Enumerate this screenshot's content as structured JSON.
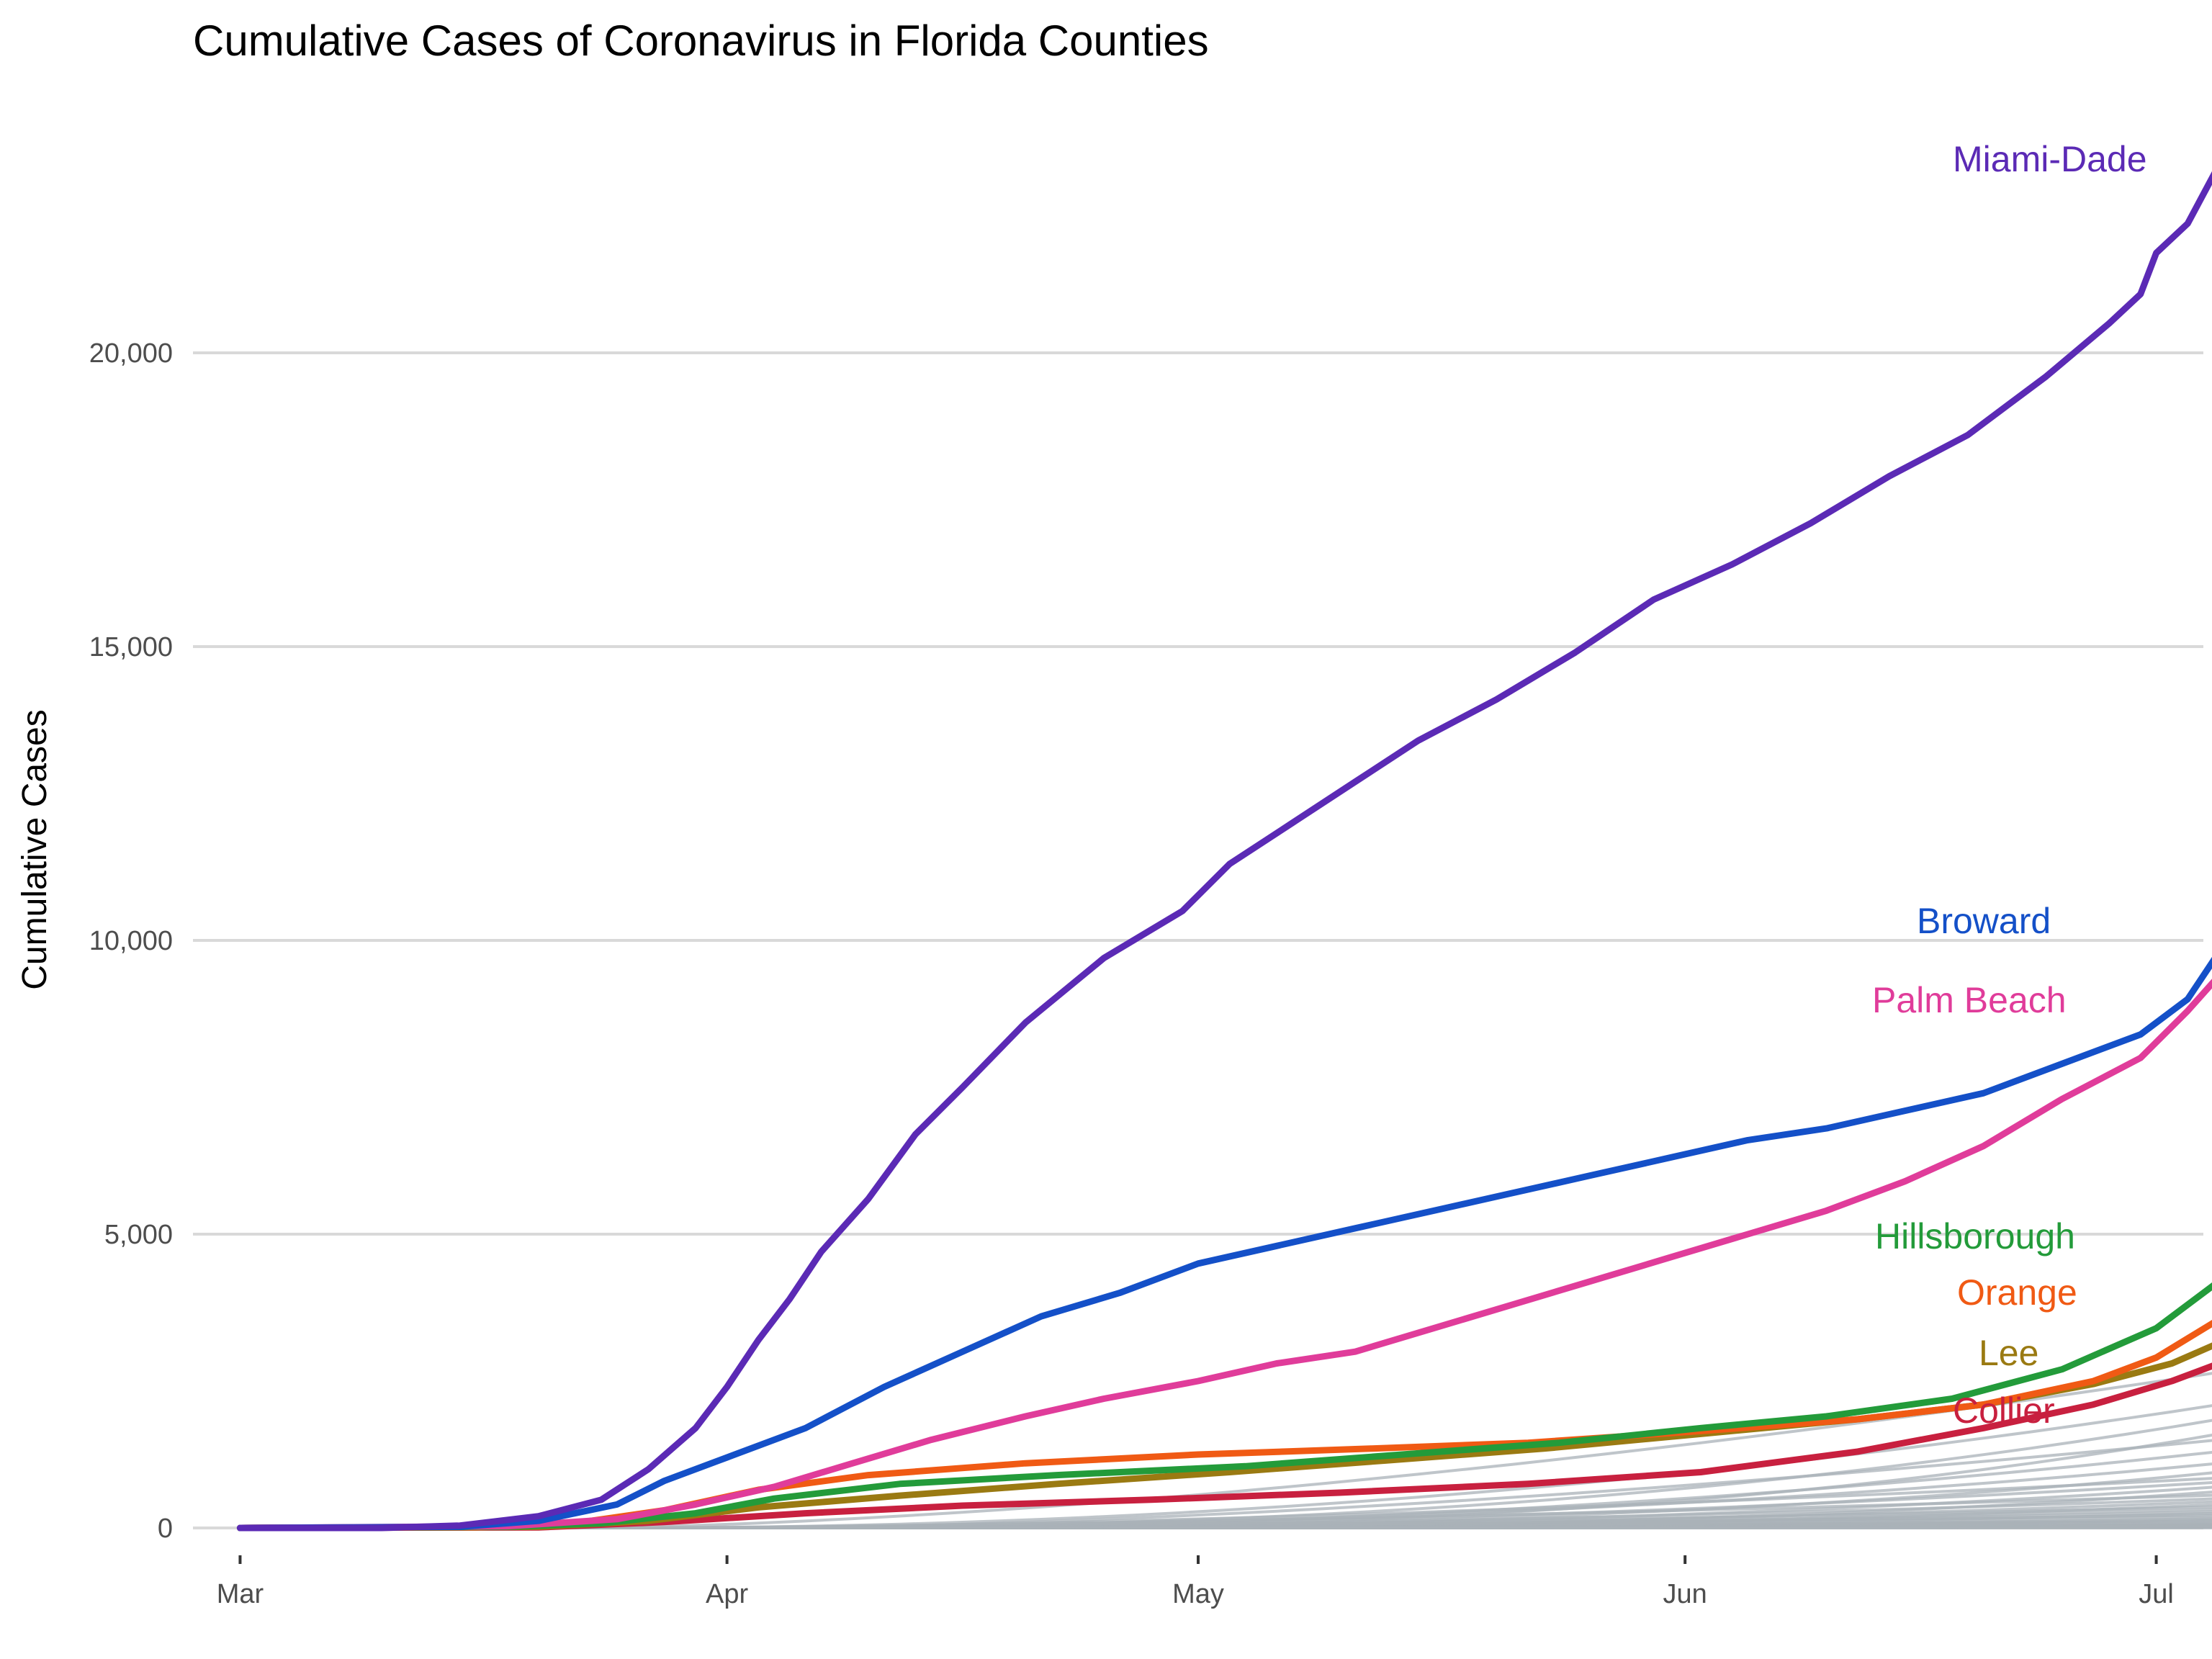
{
  "chart_data": {
    "type": "line",
    "title": "Cumulative Cases of Coronavirus in Florida Counties",
    "xlabel": "",
    "ylabel": "Cumulative Cases",
    "x_ticks": [
      "Mar",
      "Apr",
      "May",
      "Jun",
      "Jul"
    ],
    "y_ticks": [
      "0",
      "5,000",
      "10,000",
      "15,000",
      "20,000"
    ],
    "ylim": [
      -800,
      24500
    ],
    "xlim": [
      "2020-02-27",
      "2020-07-04"
    ],
    "grid": true,
    "legend": "direct labels at line ends",
    "highlighted_series": [
      {
        "name": "Miami-Dade",
        "color": "#5b2ab5",
        "points": [
          [
            "2020-03-01",
            0
          ],
          [
            "2020-03-10",
            0
          ],
          [
            "2020-03-15",
            40
          ],
          [
            "2020-03-20",
            200
          ],
          [
            "2020-03-24",
            480
          ],
          [
            "2020-03-27",
            1000
          ],
          [
            "2020-03-30",
            1700
          ],
          [
            "2020-04-01",
            2400
          ],
          [
            "2020-04-03",
            3200
          ],
          [
            "2020-04-05",
            3900
          ],
          [
            "2020-04-07",
            4700
          ],
          [
            "2020-04-10",
            5600
          ],
          [
            "2020-04-13",
            6700
          ],
          [
            "2020-04-16",
            7500
          ],
          [
            "2020-04-20",
            8600
          ],
          [
            "2020-04-25",
            9700
          ],
          [
            "2020-04-30",
            10500
          ],
          [
            "2020-05-03",
            11300
          ],
          [
            "2020-05-07",
            12000
          ],
          [
            "2020-05-11",
            12700
          ],
          [
            "2020-05-15",
            13400
          ],
          [
            "2020-05-20",
            14100
          ],
          [
            "2020-05-25",
            14900
          ],
          [
            "2020-05-30",
            15800
          ],
          [
            "2020-06-04",
            16400
          ],
          [
            "2020-06-09",
            17100
          ],
          [
            "2020-06-14",
            17900
          ],
          [
            "2020-06-19",
            18600
          ],
          [
            "2020-06-24",
            19600
          ],
          [
            "2020-06-28",
            20500
          ],
          [
            "2020-06-30",
            21000
          ],
          [
            "2020-07-01",
            21700
          ],
          [
            "2020-07-03",
            22200
          ],
          [
            "2020-07-05",
            23200
          ]
        ]
      },
      {
        "name": "Broward",
        "color": "#1450c8",
        "points": [
          [
            "2020-03-01",
            0
          ],
          [
            "2020-03-15",
            20
          ],
          [
            "2020-03-20",
            120
          ],
          [
            "2020-03-25",
            400
          ],
          [
            "2020-03-28",
            800
          ],
          [
            "2020-04-01",
            1200
          ],
          [
            "2020-04-06",
            1700
          ],
          [
            "2020-04-11",
            2400
          ],
          [
            "2020-04-16",
            3000
          ],
          [
            "2020-04-21",
            3600
          ],
          [
            "2020-04-26",
            4000
          ],
          [
            "2020-05-01",
            4500
          ],
          [
            "2020-05-06",
            4800
          ],
          [
            "2020-05-11",
            5100
          ],
          [
            "2020-05-16",
            5400
          ],
          [
            "2020-05-21",
            5700
          ],
          [
            "2020-05-26",
            6000
          ],
          [
            "2020-05-31",
            6300
          ],
          [
            "2020-06-05",
            6600
          ],
          [
            "2020-06-10",
            6800
          ],
          [
            "2020-06-15",
            7100
          ],
          [
            "2020-06-20",
            7400
          ],
          [
            "2020-06-25",
            7900
          ],
          [
            "2020-06-30",
            8400
          ],
          [
            "2020-07-03",
            9000
          ],
          [
            "2020-07-05",
            9800
          ]
        ]
      },
      {
        "name": "Palm Beach",
        "color": "#e03c9a",
        "points": [
          [
            "2020-03-01",
            0
          ],
          [
            "2020-03-18",
            30
          ],
          [
            "2020-03-25",
            150
          ],
          [
            "2020-03-30",
            400
          ],
          [
            "2020-04-04",
            700
          ],
          [
            "2020-04-09",
            1100
          ],
          [
            "2020-04-14",
            1500
          ],
          [
            "2020-04-20",
            1900
          ],
          [
            "2020-04-25",
            2200
          ],
          [
            "2020-05-01",
            2500
          ],
          [
            "2020-05-06",
            2800
          ],
          [
            "2020-05-11",
            3000
          ],
          [
            "2020-05-16",
            3400
          ],
          [
            "2020-05-21",
            3800
          ],
          [
            "2020-05-26",
            4200
          ],
          [
            "2020-05-31",
            4600
          ],
          [
            "2020-06-05",
            5000
          ],
          [
            "2020-06-10",
            5400
          ],
          [
            "2020-06-15",
            5900
          ],
          [
            "2020-06-20",
            6500
          ],
          [
            "2020-06-25",
            7300
          ],
          [
            "2020-06-30",
            8000
          ],
          [
            "2020-07-03",
            8800
          ],
          [
            "2020-07-05",
            9400
          ]
        ]
      },
      {
        "name": "Hillsborough",
        "color": "#239b3a",
        "points": [
          [
            "2020-03-01",
            0
          ],
          [
            "2020-03-18",
            20
          ],
          [
            "2020-03-24",
            80
          ],
          [
            "2020-03-30",
            250
          ],
          [
            "2020-04-04",
            500
          ],
          [
            "2020-04-12",
            750
          ],
          [
            "2020-04-22",
            900
          ],
          [
            "2020-05-04",
            1050
          ],
          [
            "2020-05-14",
            1250
          ],
          [
            "2020-05-24",
            1450
          ],
          [
            "2020-06-02",
            1700
          ],
          [
            "2020-06-10",
            1900
          ],
          [
            "2020-06-18",
            2200
          ],
          [
            "2020-06-25",
            2700
          ],
          [
            "2020-07-01",
            3400
          ],
          [
            "2020-07-05",
            4200
          ]
        ]
      },
      {
        "name": "Orange",
        "color": "#f05a14",
        "points": [
          [
            "2020-03-01",
            0
          ],
          [
            "2020-03-16",
            10
          ],
          [
            "2020-03-22",
            70
          ],
          [
            "2020-03-28",
            300
          ],
          [
            "2020-04-03",
            650
          ],
          [
            "2020-04-10",
            900
          ],
          [
            "2020-04-20",
            1100
          ],
          [
            "2020-05-01",
            1250
          ],
          [
            "2020-05-12",
            1350
          ],
          [
            "2020-05-22",
            1450
          ],
          [
            "2020-06-02",
            1650
          ],
          [
            "2020-06-12",
            1850
          ],
          [
            "2020-06-20",
            2100
          ],
          [
            "2020-06-27",
            2500
          ],
          [
            "2020-07-01",
            2900
          ],
          [
            "2020-07-05",
            3550
          ]
        ]
      },
      {
        "name": "Lee",
        "color": "#9a7a12",
        "points": [
          [
            "2020-03-01",
            0
          ],
          [
            "2020-03-20",
            20
          ],
          [
            "2020-03-27",
            120
          ],
          [
            "2020-04-03",
            350
          ],
          [
            "2020-04-12",
            550
          ],
          [
            "2020-04-22",
            750
          ],
          [
            "2020-05-03",
            950
          ],
          [
            "2020-05-13",
            1150
          ],
          [
            "2020-05-23",
            1350
          ],
          [
            "2020-06-02",
            1600
          ],
          [
            "2020-06-12",
            1850
          ],
          [
            "2020-06-20",
            2100
          ],
          [
            "2020-06-27",
            2450
          ],
          [
            "2020-07-02",
            2800
          ],
          [
            "2020-07-05",
            3150
          ]
        ]
      },
      {
        "name": "Collier",
        "color": "#c8203f",
        "points": [
          [
            "2020-03-01",
            0
          ],
          [
            "2020-03-20",
            10
          ],
          [
            "2020-03-28",
            100
          ],
          [
            "2020-04-06",
            250
          ],
          [
            "2020-04-16",
            380
          ],
          [
            "2020-04-28",
            480
          ],
          [
            "2020-05-10",
            600
          ],
          [
            "2020-05-22",
            750
          ],
          [
            "2020-06-02",
            950
          ],
          [
            "2020-06-12",
            1300
          ],
          [
            "2020-06-20",
            1700
          ],
          [
            "2020-06-27",
            2100
          ],
          [
            "2020-07-02",
            2500
          ],
          [
            "2020-07-05",
            2800
          ]
        ]
      }
    ],
    "background_series_color": "#a9b1b8",
    "background_series_end_values": [
      2650,
      2100,
      1850,
      1600,
      1500,
      1300,
      1100,
      950,
      850,
      780,
      700,
      620,
      560,
      500,
      450,
      400,
      360,
      320,
      280,
      250,
      220,
      190,
      160,
      140,
      120,
      100,
      80,
      65,
      50,
      40,
      30,
      20,
      12,
      6,
      3
    ]
  }
}
